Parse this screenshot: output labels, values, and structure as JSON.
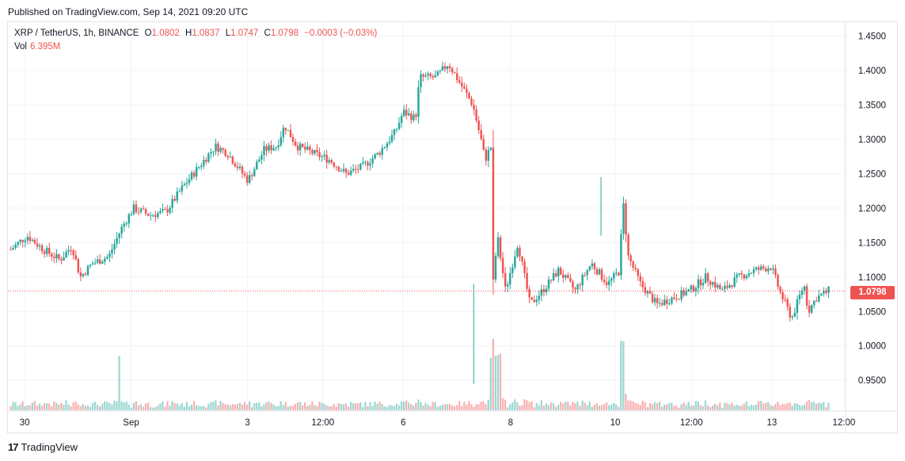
{
  "header": {
    "published": "Published on TradingView.com, Sep 14, 2021 09:20 UTC"
  },
  "legend": {
    "symbol": "XRP / TetherUS, 1h, BINANCE",
    "open_label": "O",
    "open": "1.0802",
    "high_label": "H",
    "high": "1.0837",
    "low_label": "L",
    "low": "1.0747",
    "close_label": "C",
    "close": "1.0798",
    "change": "−0.0003 (−0.03%)",
    "vol_label": "Vol",
    "vol": "6.395M"
  },
  "price_badge": "1.0798",
  "footer": {
    "brand": "TradingView",
    "logo": "17"
  },
  "colors": {
    "up": "#26a69a",
    "down": "#ef5350",
    "grid": "#f0f3fa",
    "axis_text": "#131722"
  },
  "chart_data": {
    "type": "candlestick",
    "title": "XRP / TetherUS, 1h, BINANCE",
    "y_axis": {
      "side": "right",
      "range": [
        0.91,
        1.47
      ],
      "ticks": [
        "1.4500",
        "1.4000",
        "1.3500",
        "1.3000",
        "1.2500",
        "1.2000",
        "1.1500",
        "1.1000",
        "1.0500",
        "1.0000",
        "0.9500"
      ]
    },
    "x_axis": {
      "labels": [
        "30",
        "Sep",
        "3",
        "12:00",
        "6",
        "8",
        "10",
        "12:00",
        "13",
        "12:00"
      ],
      "label_positions_fraction": [
        0.02,
        0.147,
        0.286,
        0.376,
        0.472,
        0.6,
        0.725,
        0.816,
        0.912,
        0.998
      ]
    },
    "last_price": 1.0798,
    "price_path": [
      [
        0.0,
        1.14
      ],
      [
        0.02,
        1.16
      ],
      [
        0.04,
        1.14
      ],
      [
        0.06,
        1.125
      ],
      [
        0.075,
        1.145
      ],
      [
        0.085,
        1.1
      ],
      [
        0.1,
        1.12
      ],
      [
        0.12,
        1.13
      ],
      [
        0.135,
        1.17
      ],
      [
        0.15,
        1.2
      ],
      [
        0.17,
        1.19
      ],
      [
        0.19,
        1.195
      ],
      [
        0.21,
        1.23
      ],
      [
        0.23,
        1.26
      ],
      [
        0.25,
        1.29
      ],
      [
        0.265,
        1.28
      ],
      [
        0.29,
        1.24
      ],
      [
        0.31,
        1.285
      ],
      [
        0.325,
        1.29
      ],
      [
        0.335,
        1.32
      ],
      [
        0.35,
        1.29
      ],
      [
        0.37,
        1.28
      ],
      [
        0.39,
        1.27
      ],
      [
        0.41,
        1.25
      ],
      [
        0.43,
        1.26
      ],
      [
        0.45,
        1.28
      ],
      [
        0.47,
        1.31
      ],
      [
        0.48,
        1.34
      ],
      [
        0.495,
        1.33
      ],
      [
        0.5,
        1.39
      ],
      [
        0.52,
        1.39
      ],
      [
        0.535,
        1.41
      ],
      [
        0.55,
        1.38
      ],
      [
        0.565,
        1.35
      ],
      [
        0.575,
        1.3
      ],
      [
        0.58,
        1.27
      ],
      [
        0.587,
        1.29
      ],
      [
        0.59,
        1.09
      ],
      [
        0.595,
        1.16
      ],
      [
        0.605,
        1.08
      ],
      [
        0.62,
        1.15
      ],
      [
        0.635,
        1.06
      ],
      [
        0.65,
        1.08
      ],
      [
        0.67,
        1.11
      ],
      [
        0.69,
        1.08
      ],
      [
        0.71,
        1.12
      ],
      [
        0.73,
        1.09
      ],
      [
        0.745,
        1.11
      ],
      [
        0.748,
        1.22
      ],
      [
        0.755,
        1.13
      ],
      [
        0.77,
        1.09
      ],
      [
        0.79,
        1.06
      ],
      [
        0.81,
        1.07
      ],
      [
        0.83,
        1.08
      ],
      [
        0.85,
        1.1
      ],
      [
        0.87,
        1.08
      ],
      [
        0.89,
        1.1
      ],
      [
        0.91,
        1.11
      ],
      [
        0.93,
        1.115
      ],
      [
        0.94,
        1.08
      ],
      [
        0.955,
        1.04
      ],
      [
        0.97,
        1.09
      ],
      [
        0.975,
        1.05
      ],
      [
        0.985,
        1.07
      ],
      [
        1.0,
        1.08
      ]
    ],
    "volume_scale": "relative"
  }
}
